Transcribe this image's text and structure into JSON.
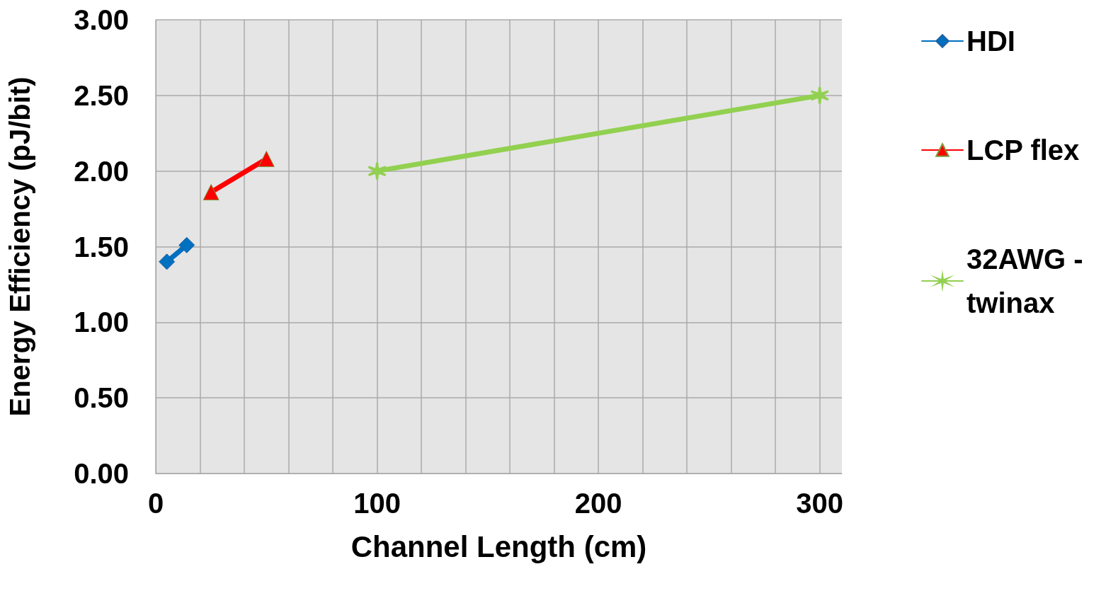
{
  "chart_data": {
    "type": "line",
    "xlabel": "Channel Length (cm)",
    "ylabel": "Energy Efficiency (pJ/bit)",
    "xlim": [
      0,
      310
    ],
    "xticks": [
      0,
      {
        "value": 20,
        "label": null
      },
      {
        "value": 40,
        "label": null
      },
      {
        "value": 60,
        "label": null
      },
      {
        "value": 80,
        "label": null
      },
      100,
      {
        "value": 120,
        "label": null
      },
      {
        "value": 140,
        "label": null
      },
      {
        "value": 160,
        "label": null
      },
      {
        "value": 180,
        "label": null
      },
      200,
      {
        "value": 220,
        "label": null
      },
      {
        "value": 240,
        "label": null
      },
      {
        "value": 260,
        "label": null
      },
      {
        "value": 280,
        "label": null
      },
      300
    ],
    "ylim": [
      0,
      3
    ],
    "yticks": [
      {
        "value": 0,
        "label": "0.00"
      },
      {
        "value": 0.5,
        "label": "0.50"
      },
      {
        "value": 1,
        "label": "1.00"
      },
      {
        "value": 1.5,
        "label": "1.50"
      },
      {
        "value": 2,
        "label": "2.00"
      },
      {
        "value": 2.5,
        "label": "2.50"
      },
      {
        "value": 3,
        "label": "3.00"
      }
    ],
    "grid": true,
    "legend": "right",
    "line_style": "solid",
    "series": [
      {
        "name": "HDI",
        "color": "#0070c0",
        "marker": "diamond",
        "x": [
          5,
          14
        ],
        "values": [
          1.4,
          1.51
        ]
      },
      {
        "name": "LCP flex",
        "color": "#ff0000",
        "marker": "triangle",
        "x": [
          25,
          50
        ],
        "values": [
          1.86,
          2.08
        ]
      },
      {
        "name": "32AWG - twinax",
        "color": "#92d050",
        "marker": "cross",
        "x": [
          100,
          300
        ],
        "values": [
          2.0,
          2.5
        ]
      }
    ]
  }
}
